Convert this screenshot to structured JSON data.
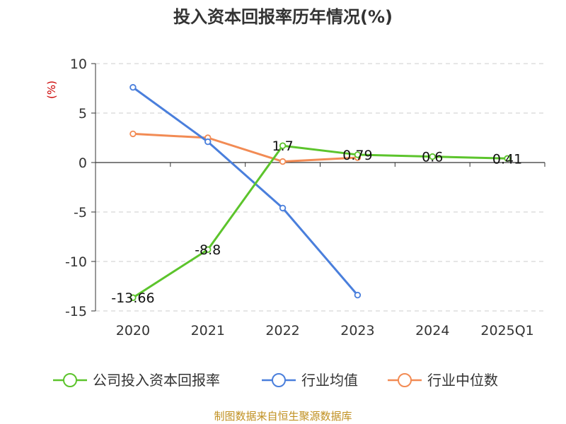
{
  "chart_data": {
    "type": "line",
    "title": "投入资本回报率历年情况(%)",
    "ylabel": "(%)",
    "categories": [
      "2020",
      "2021",
      "2022",
      "2023",
      "2024",
      "2025Q1"
    ],
    "ylim": [
      -15,
      10
    ],
    "yticks": [
      10,
      5,
      0,
      -5,
      -10,
      -15
    ],
    "grid": true,
    "legend_position": "bottom",
    "series": [
      {
        "name": "公司投入资本回报率",
        "color": "#5cc42c",
        "values": [
          -13.66,
          -8.8,
          1.7,
          0.79,
          0.6,
          0.41
        ],
        "labels": [
          "-13.66",
          "-8.8",
          "1.7",
          "0.79",
          "0.6",
          "0.41"
        ]
      },
      {
        "name": "行业均值",
        "color": "#4a7fdc",
        "values": [
          7.6,
          2.1,
          -4.6,
          -13.4,
          null,
          null
        ]
      },
      {
        "name": "行业中位数",
        "color": "#f28b54",
        "values": [
          2.9,
          2.5,
          0.1,
          0.5,
          null,
          null
        ]
      }
    ]
  },
  "source": "制图数据来自恒生聚源数据库"
}
